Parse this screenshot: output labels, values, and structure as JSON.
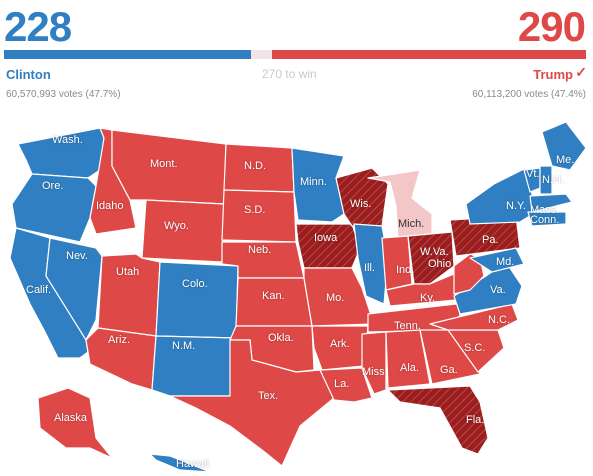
{
  "colors": {
    "dem": "#2f7fc2",
    "rep": "#de4846",
    "rep_flip": "#9a1e1e",
    "rep_pending": "#f3c7c8",
    "threshold_gap": "#f2e4e6",
    "border": "#ffffff"
  },
  "tally": {
    "dem": {
      "electoral_votes": "228",
      "name": "Clinton",
      "popular": "60,570,993 votes (47.7%)",
      "ev_value": 228
    },
    "rep": {
      "electoral_votes": "290",
      "name": "Trump",
      "popular": "60,113,200 votes (47.4%)",
      "ev_value": 290,
      "winner_icon": "checkmark-icon"
    },
    "threshold_label": "270 to win"
  },
  "states": [
    {
      "label": "Wash.",
      "party": "dem"
    },
    {
      "label": "Ore.",
      "party": "dem"
    },
    {
      "label": "Calif.",
      "party": "dem"
    },
    {
      "label": "Nev.",
      "party": "dem"
    },
    {
      "label": "Idaho",
      "party": "rep"
    },
    {
      "label": "Mont.",
      "party": "rep"
    },
    {
      "label": "Wyo.",
      "party": "rep"
    },
    {
      "label": "Utah",
      "party": "rep"
    },
    {
      "label": "Colo.",
      "party": "dem"
    },
    {
      "label": "Ariz.",
      "party": "rep"
    },
    {
      "label": "N.M.",
      "party": "dem"
    },
    {
      "label": "N.D.",
      "party": "rep"
    },
    {
      "label": "S.D.",
      "party": "rep"
    },
    {
      "label": "Neb.",
      "party": "rep"
    },
    {
      "label": "Kan.",
      "party": "rep"
    },
    {
      "label": "Okla.",
      "party": "rep"
    },
    {
      "label": "Tex.",
      "party": "rep"
    },
    {
      "label": "Minn.",
      "party": "dem"
    },
    {
      "label": "Iowa",
      "party": "rep_flip"
    },
    {
      "label": "Mo.",
      "party": "rep"
    },
    {
      "label": "Ark.",
      "party": "rep"
    },
    {
      "label": "La.",
      "party": "rep"
    },
    {
      "label": "Wis.",
      "party": "rep_flip"
    },
    {
      "label": "Ill.",
      "party": "dem"
    },
    {
      "label": "Mich.",
      "party": "rep_pending"
    },
    {
      "label": "Ind.",
      "party": "rep"
    },
    {
      "label": "Ohio",
      "party": "rep_flip"
    },
    {
      "label": "Ky.",
      "party": "rep"
    },
    {
      "label": "Tenn.",
      "party": "rep"
    },
    {
      "label": "Miss.",
      "party": "rep"
    },
    {
      "label": "Ala.",
      "party": "rep"
    },
    {
      "label": "Ga.",
      "party": "rep"
    },
    {
      "label": "Fla.",
      "party": "rep_flip"
    },
    {
      "label": "S.C.",
      "party": "rep"
    },
    {
      "label": "N.C.",
      "party": "rep"
    },
    {
      "label": "Va.",
      "party": "dem"
    },
    {
      "label": "W.Va.",
      "party": "rep"
    },
    {
      "label": "Pa.",
      "party": "rep_flip"
    },
    {
      "label": "N.Y.",
      "party": "dem"
    },
    {
      "label": "Md.",
      "party": "dem"
    },
    {
      "label": "Vt.",
      "party": "dem"
    },
    {
      "label": "N.H.",
      "party": "dem"
    },
    {
      "label": "Mass.",
      "party": "dem"
    },
    {
      "label": "Conn.",
      "party": "dem"
    },
    {
      "label": "Me.",
      "party": "dem"
    },
    {
      "label": "Alaska",
      "party": "rep"
    },
    {
      "label": "Hawaii",
      "party": "dem"
    }
  ]
}
